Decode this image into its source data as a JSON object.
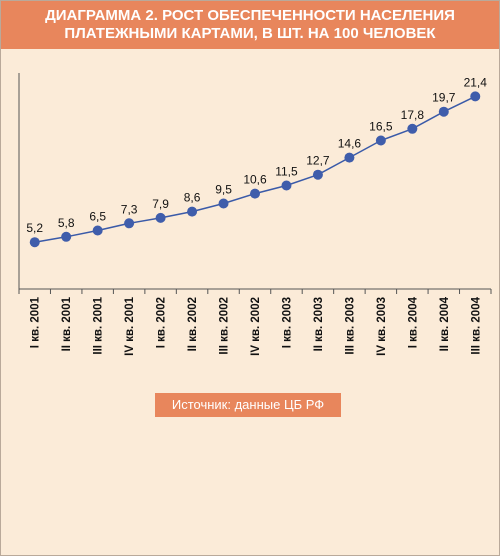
{
  "title": {
    "line1": "ДИАГРАММА 2. РОСТ ОБЕСПЕЧЕННОСТИ НАСЕЛЕНИЯ",
    "line2": "ПЛАТЕЖНЫМИ КАРТАМИ, В ШТ. НА 100 ЧЕЛОВЕК"
  },
  "source": "Источник: данные  ЦБ РФ",
  "colors": {
    "accent": "#e8865c",
    "background": "#fbebd8",
    "line": "#3a5aa8",
    "marker": "#3f5dab"
  },
  "chart_data": {
    "type": "line",
    "title": "ДИАГРАММА 2. РОСТ ОБЕСПЕЧЕННОСТИ НАСЕЛЕНИЯ ПЛАТЕЖНЫМИ КАРТАМИ, В ШТ. НА 100 ЧЕЛОВЕК",
    "categories": [
      "I кв. 2001",
      "II кв. 2001",
      "III кв. 2001",
      "IV кв. 2001",
      "I кв. 2002",
      "II кв. 2002",
      "III кв. 2002",
      "IV кв. 2002",
      "I кв. 2003",
      "II кв. 2003",
      "III кв. 2003",
      "IV кв. 2003",
      "I кв. 2004",
      "II кв. 2004",
      "III кв. 2004"
    ],
    "values": [
      5.2,
      5.8,
      6.5,
      7.3,
      7.9,
      8.6,
      9.5,
      10.6,
      11.5,
      12.7,
      14.6,
      16.5,
      17.8,
      19.7,
      21.4
    ],
    "value_labels": [
      "5,2",
      "5,8",
      "6,5",
      "7,3",
      "7,9",
      "8,6",
      "9,5",
      "10,6",
      "11,5",
      "12,7",
      "14,6",
      "16,5",
      "17,8",
      "19,7",
      "21,4"
    ],
    "ylim": [
      0,
      24
    ],
    "grid": false,
    "legend": "none",
    "data_labels": true
  }
}
